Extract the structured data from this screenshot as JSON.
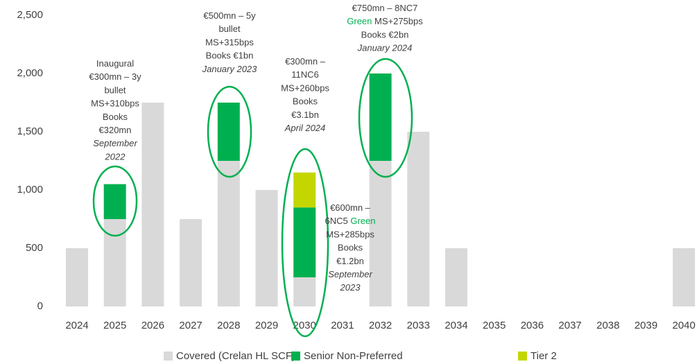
{
  "chart_data": {
    "type": "stacked_bar",
    "categories": [
      "2024",
      "2025",
      "2026",
      "2027",
      "2028",
      "2029",
      "2030",
      "2031",
      "2032",
      "2033",
      "2034",
      "2035",
      "2036",
      "2037",
      "2038",
      "2039",
      "2040"
    ],
    "series": [
      {
        "name": "Covered (Crelan HL SCF)",
        "color": "#d9d9d9",
        "values": [
          500,
          750,
          1750,
          750,
          1250,
          1000,
          250,
          0,
          1250,
          1500,
          500,
          0,
          0,
          0,
          0,
          0,
          500
        ]
      },
      {
        "name": "Senior Non-Preferred",
        "color": "#00b050",
        "values": [
          0,
          300,
          0,
          0,
          500,
          0,
          600,
          0,
          750,
          0,
          0,
          0,
          0,
          0,
          0,
          0,
          0
        ]
      },
      {
        "name": "Tier 2",
        "color": "#c4d600",
        "values": [
          0,
          0,
          0,
          0,
          0,
          0,
          300,
          0,
          0,
          0,
          0,
          0,
          0,
          0,
          0,
          0,
          0
        ]
      }
    ],
    "ylim": [
      0,
      2500
    ],
    "yticks": [
      0,
      500,
      {
        "value": 1000,
        "label": "1,000"
      },
      {
        "value": 1500,
        "label": "1,500"
      },
      {
        "value": 2000,
        "label": "2,000"
      },
      {
        "value": 2500,
        "label": "2,500"
      }
    ],
    "legend": "bottom",
    "annotations": [
      {
        "lines": [
          [
            {
              "text": "Inaugural"
            }
          ],
          [
            {
              "text": "€300mn – 3y"
            }
          ],
          [
            {
              "text": "bullet"
            }
          ],
          [
            {
              "text": "MS+310bps"
            }
          ],
          [
            {
              "text": "Books"
            }
          ],
          [
            {
              "text": "€320mn"
            }
          ],
          [
            {
              "text": "September",
              "italic": true
            }
          ],
          [
            {
              "text": "2022",
              "italic": true
            }
          ]
        ]
      },
      {
        "lines": [
          [
            {
              "text": "€500mn – 5y"
            }
          ],
          [
            {
              "text": "bullet"
            }
          ],
          [
            {
              "text": "MS+315bps"
            }
          ],
          [
            {
              "text": "Books €1bn"
            }
          ],
          [
            {
              "text": "January 2023",
              "italic": true
            }
          ]
        ]
      },
      {
        "lines": [
          [
            {
              "text": "€300mn –"
            }
          ],
          [
            {
              "text": "11NC6"
            }
          ],
          [
            {
              "text": "MS+260bps"
            }
          ],
          [
            {
              "text": "Books"
            }
          ],
          [
            {
              "text": "€3.1bn"
            }
          ],
          [
            {
              "text": "April 2024",
              "italic": true
            }
          ]
        ]
      },
      {
        "lines": [
          [
            {
              "text": "€750mn – 8NC7"
            }
          ],
          [
            {
              "text": "Green",
              "color": "#00b050"
            },
            {
              "text": " MS+275bps"
            }
          ],
          [
            {
              "text": "Books €2bn"
            }
          ],
          [
            {
              "text": "January 2024",
              "italic": true
            }
          ]
        ]
      },
      {
        "lines": [
          [
            {
              "text": "€600mn –"
            }
          ],
          [
            {
              "text": "6NC5 "
            },
            {
              "text": "Green",
              "color": "#00b050"
            }
          ],
          [
            {
              "text": "MS+285bps"
            }
          ],
          [
            {
              "text": "Books"
            }
          ],
          [
            {
              "text": "€1.2bn"
            }
          ],
          [
            {
              "text": "September",
              "italic": true
            }
          ],
          [
            {
              "text": "2023",
              "italic": true
            }
          ]
        ]
      }
    ]
  }
}
